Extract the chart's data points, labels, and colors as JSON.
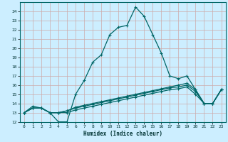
{
  "xlabel": "Humidex (Indice chaleur)",
  "background_color": "#cceeff",
  "grid_color": "#aacccc",
  "line_color": "#006666",
  "xlim": [
    -0.5,
    23.5
  ],
  "ylim": [
    12,
    25
  ],
  "xticks": [
    0,
    1,
    2,
    3,
    4,
    5,
    6,
    7,
    8,
    9,
    10,
    11,
    12,
    13,
    14,
    15,
    16,
    17,
    18,
    19,
    20,
    21,
    22,
    23
  ],
  "yticks": [
    12,
    13,
    14,
    15,
    16,
    17,
    18,
    19,
    20,
    21,
    22,
    23,
    24
  ],
  "series": [
    [
      13.0,
      13.7,
      13.5,
      13.0,
      12.0,
      12.0,
      15.0,
      16.5,
      18.5,
      19.3,
      21.5,
      22.3,
      22.5,
      24.5,
      23.5,
      21.5,
      19.5,
      17.0,
      16.7,
      17.0,
      15.5,
      14.0,
      14.0,
      15.5
    ],
    [
      13.0,
      13.5,
      13.5,
      13.0,
      13.0,
      13.2,
      13.6,
      13.8,
      14.0,
      14.2,
      14.4,
      14.6,
      14.8,
      15.0,
      15.2,
      15.4,
      15.6,
      15.8,
      16.0,
      16.2,
      15.5,
      14.0,
      14.0,
      15.5
    ],
    [
      13.0,
      13.5,
      13.5,
      13.0,
      13.0,
      13.2,
      13.5,
      13.7,
      13.9,
      14.1,
      14.3,
      14.5,
      14.7,
      14.9,
      15.1,
      15.3,
      15.5,
      15.7,
      15.8,
      16.0,
      15.3,
      14.0,
      14.0,
      15.5
    ],
    [
      13.0,
      13.5,
      13.5,
      13.0,
      13.0,
      13.0,
      13.3,
      13.5,
      13.7,
      13.9,
      14.1,
      14.3,
      14.5,
      14.7,
      14.9,
      15.1,
      15.3,
      15.5,
      15.6,
      15.8,
      15.0,
      14.0,
      14.0,
      15.5
    ]
  ]
}
